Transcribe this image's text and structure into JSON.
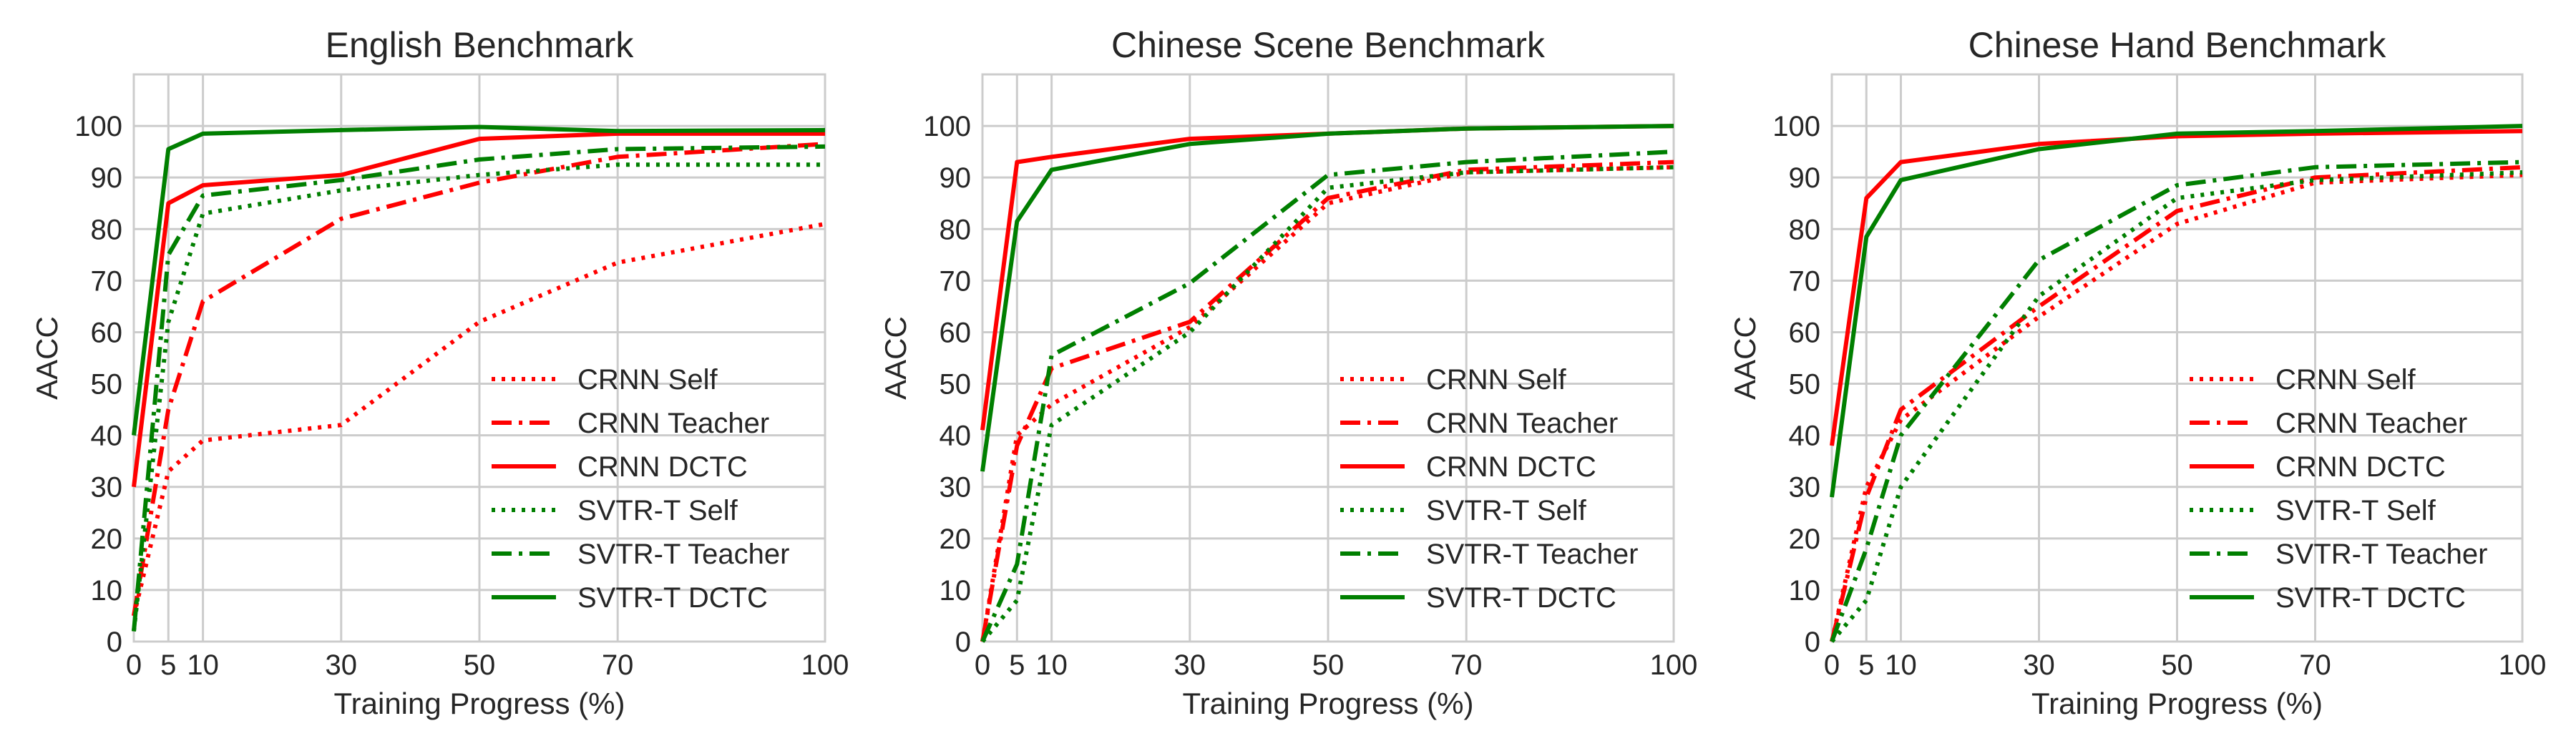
{
  "chart_data": [
    {
      "type": "line",
      "title": "English Benchmark",
      "xlabel": "Training Progress (%)",
      "ylabel": "AACC",
      "xlim": [
        0,
        100
      ],
      "ylim": [
        0,
        110
      ],
      "xticks": [
        0,
        5,
        10,
        30,
        50,
        70,
        100
      ],
      "yticks": [
        0,
        10,
        20,
        30,
        40,
        50,
        60,
        70,
        80,
        90,
        100
      ],
      "grid": true,
      "legend_position": "bottom-right",
      "x": [
        0,
        5,
        10,
        30,
        50,
        70,
        100
      ],
      "series": [
        {
          "name": "CRNN Self",
          "color": "#ff0000",
          "dash": "dotted",
          "values": [
            5,
            33,
            39,
            42,
            62,
            73.5,
            81
          ]
        },
        {
          "name": "CRNN Teacher",
          "color": "#ff0000",
          "dash": "dashdot",
          "values": [
            5,
            45,
            66,
            82,
            89,
            94,
            96.5
          ]
        },
        {
          "name": "CRNN DCTC",
          "color": "#ff0000",
          "dash": "solid",
          "values": [
            30,
            85,
            88.5,
            90.5,
            97.5,
            98.5,
            98.5
          ]
        },
        {
          "name": "SVTR-T Self",
          "color": "#007f00",
          "dash": "dotted",
          "values": [
            2,
            62,
            83,
            87.5,
            90.5,
            92.5,
            92.5
          ]
        },
        {
          "name": "SVTR-T Teacher",
          "color": "#007f00",
          "dash": "dashdot",
          "values": [
            2,
            75,
            86.5,
            89.5,
            93.5,
            95.5,
            96
          ]
        },
        {
          "name": "SVTR-T DCTC",
          "color": "#007f00",
          "dash": "solid",
          "values": [
            40,
            95.5,
            98.5,
            99.2,
            99.8,
            99,
            99.2
          ]
        }
      ]
    },
    {
      "type": "line",
      "title": "Chinese Scene Benchmark",
      "xlabel": "Training Progress (%)",
      "ylabel": "AACC",
      "xlim": [
        0,
        100
      ],
      "ylim": [
        0,
        110
      ],
      "xticks": [
        0,
        5,
        10,
        30,
        50,
        70,
        100
      ],
      "yticks": [
        0,
        10,
        20,
        30,
        40,
        50,
        60,
        70,
        80,
        90,
        100
      ],
      "grid": true,
      "legend_position": "bottom-right",
      "x": [
        0,
        5,
        10,
        30,
        50,
        70,
        100
      ],
      "series": [
        {
          "name": "CRNN Self",
          "color": "#ff0000",
          "dash": "dotted",
          "values": [
            0,
            40,
            46,
            61,
            85,
            91,
            92
          ]
        },
        {
          "name": "CRNN Teacher",
          "color": "#ff0000",
          "dash": "dashdot",
          "values": [
            0,
            38,
            53,
            62,
            86,
            91.5,
            93
          ]
        },
        {
          "name": "CRNN DCTC",
          "color": "#ff0000",
          "dash": "solid",
          "values": [
            41,
            93,
            94,
            97.5,
            98.5,
            99.5,
            100
          ]
        },
        {
          "name": "SVTR-T Self",
          "color": "#007f00",
          "dash": "dotted",
          "values": [
            0,
            8,
            42,
            60,
            88,
            91,
            92
          ]
        },
        {
          "name": "SVTR-T Teacher",
          "color": "#007f00",
          "dash": "dashdot",
          "values": [
            0,
            15,
            55.5,
            69.5,
            90.5,
            93,
            95
          ]
        },
        {
          "name": "SVTR-T DCTC",
          "color": "#007f00",
          "dash": "solid",
          "values": [
            33,
            81.5,
            91.5,
            96.5,
            98.5,
            99.5,
            100
          ]
        }
      ]
    },
    {
      "type": "line",
      "title": "Chinese Hand Benchmark",
      "xlabel": "Training Progress (%)",
      "ylabel": "AACC",
      "xlim": [
        0,
        100
      ],
      "ylim": [
        0,
        110
      ],
      "xticks": [
        0,
        5,
        10,
        30,
        50,
        70,
        100
      ],
      "yticks": [
        0,
        10,
        20,
        30,
        40,
        50,
        60,
        70,
        80,
        90,
        100
      ],
      "grid": true,
      "legend_position": "bottom-right",
      "x": [
        0,
        5,
        10,
        30,
        50,
        70,
        100
      ],
      "series": [
        {
          "name": "CRNN Self",
          "color": "#ff0000",
          "dash": "dotted",
          "values": [
            0,
            30,
            43,
            63,
            81,
            89,
            90.5
          ]
        },
        {
          "name": "CRNN Teacher",
          "color": "#ff0000",
          "dash": "dashdot",
          "values": [
            0,
            28,
            45,
            65,
            83.5,
            90,
            92
          ]
        },
        {
          "name": "CRNN DCTC",
          "color": "#ff0000",
          "dash": "solid",
          "values": [
            38,
            86,
            93,
            96.5,
            98,
            98.5,
            99
          ]
        },
        {
          "name": "SVTR-T Self",
          "color": "#007f00",
          "dash": "dotted",
          "values": [
            0,
            8,
            30,
            67,
            86,
            89.5,
            91
          ]
        },
        {
          "name": "SVTR-T Teacher",
          "color": "#007f00",
          "dash": "dashdot",
          "values": [
            0,
            18,
            40,
            74,
            88.5,
            92,
            93
          ]
        },
        {
          "name": "SVTR-T DCTC",
          "color": "#007f00",
          "dash": "solid",
          "values": [
            28,
            78.5,
            89.5,
            95.5,
            98.5,
            99,
            100
          ]
        }
      ]
    }
  ]
}
